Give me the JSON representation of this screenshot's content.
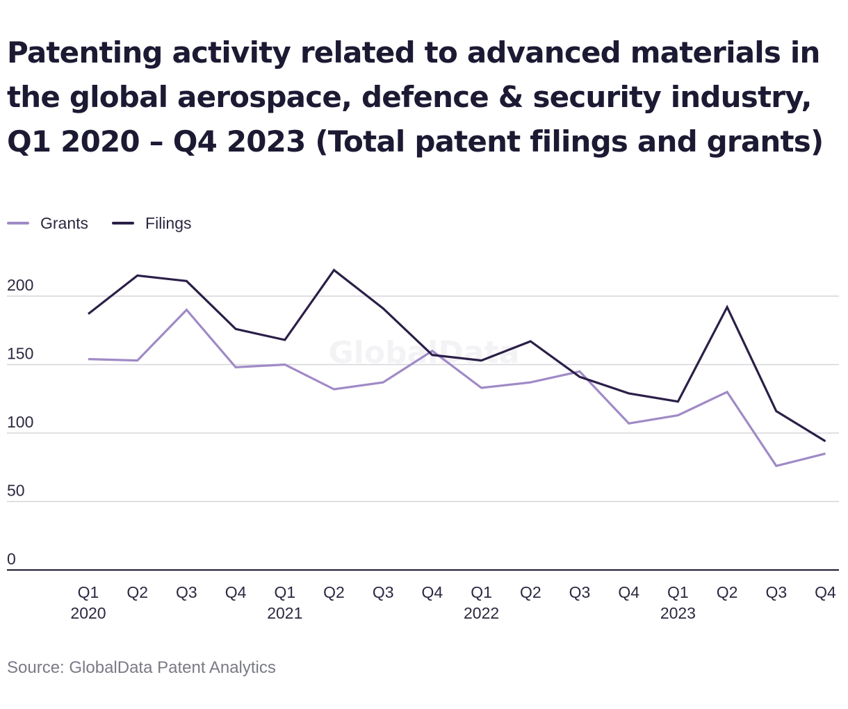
{
  "chart_data": {
    "type": "line",
    "title": "Patenting activity related to advanced materials in the global aerospace, defence & security industry, Q1 2020 – Q4 2023 (Total patent filings and grants)",
    "source": "Source: GlobalData Patent Analytics",
    "watermark": "GlobalData",
    "legend_position": "top-left",
    "grid": true,
    "ylim": [
      0,
      220
    ],
    "yticks": [
      "0",
      "50",
      "100",
      "150",
      "200"
    ],
    "categories": [
      {
        "quarter": "Q1",
        "year": "2020"
      },
      {
        "quarter": "Q2",
        "year": ""
      },
      {
        "quarter": "Q3",
        "year": ""
      },
      {
        "quarter": "Q4",
        "year": ""
      },
      {
        "quarter": "Q1",
        "year": "2021"
      },
      {
        "quarter": "Q2",
        "year": ""
      },
      {
        "quarter": "Q3",
        "year": ""
      },
      {
        "quarter": "Q4",
        "year": ""
      },
      {
        "quarter": "Q1",
        "year": "2022"
      },
      {
        "quarter": "Q2",
        "year": ""
      },
      {
        "quarter": "Q3",
        "year": ""
      },
      {
        "quarter": "Q4",
        "year": ""
      },
      {
        "quarter": "Q1",
        "year": "2023"
      },
      {
        "quarter": "Q2",
        "year": ""
      },
      {
        "quarter": "Q3",
        "year": ""
      },
      {
        "quarter": "Q4",
        "year": ""
      }
    ],
    "series": [
      {
        "name": "Grants",
        "color": "#9f8ac6",
        "values": [
          154,
          153,
          190,
          148,
          150,
          132,
          137,
          160,
          133,
          137,
          145,
          107,
          113,
          130,
          76,
          85
        ]
      },
      {
        "name": "Filings",
        "color": "#2b1f48",
        "values": [
          187,
          215,
          211,
          176,
          168,
          219,
          191,
          157,
          153,
          167,
          141,
          129,
          123,
          192,
          116,
          94
        ]
      }
    ]
  }
}
